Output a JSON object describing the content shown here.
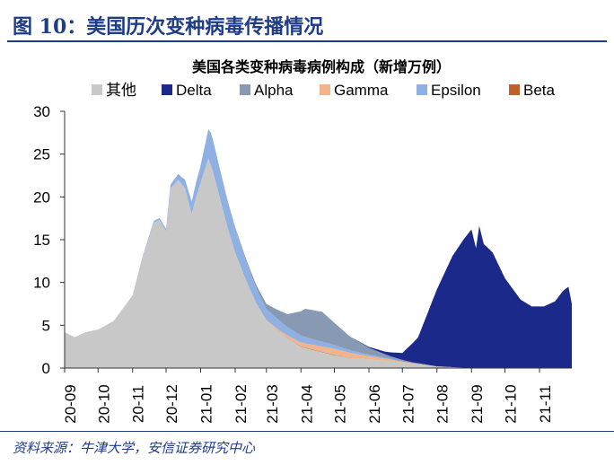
{
  "figure": {
    "label": "图 10：",
    "title": "美国历次变种病毒传播情况",
    "source": "资料来源：牛津大学，安信证券研究中心"
  },
  "colors": {
    "brand": "#1f3c88",
    "other": "#c8c8c8",
    "delta": "#1b2a8a",
    "alpha": "#8899b4",
    "gamma": "#f2b48c",
    "epsilon": "#8fb0e3",
    "beta": "#c0602a"
  },
  "chart_data": {
    "type": "area",
    "stacked": true,
    "title": "美国各类变种病毒病例构成（新增万例）",
    "xlabel": "",
    "ylabel": "",
    "ylim": [
      0,
      30
    ],
    "yticks": [
      "0",
      "5",
      "10",
      "15",
      "20",
      "25",
      "30"
    ],
    "xticks": [
      "20-09",
      "20-10",
      "20-11",
      "20-12",
      "21-01",
      "21-02",
      "21-03",
      "21-04",
      "21-05",
      "21-06",
      "21-07",
      "21-08",
      "21-09",
      "21-10",
      "21-11"
    ],
    "legend_position": "top",
    "grid": false,
    "x_start": "2020-09-01",
    "x_end": "2021-11-30",
    "series": [
      {
        "key": "other",
        "name": "其他",
        "points": [
          [
            "2020-09-01",
            4.2
          ],
          [
            "2020-09-10",
            3.6
          ],
          [
            "2020-09-20",
            4.2
          ],
          [
            "2020-10-01",
            4.5
          ],
          [
            "2020-10-15",
            5.5
          ],
          [
            "2020-11-01",
            8.5
          ],
          [
            "2020-11-10",
            13
          ],
          [
            "2020-11-20",
            17
          ],
          [
            "2020-11-25",
            17.3
          ],
          [
            "2020-12-01",
            16
          ],
          [
            "2020-12-05",
            21
          ],
          [
            "2020-12-12",
            22
          ],
          [
            "2020-12-18",
            21
          ],
          [
            "2020-12-24",
            18
          ],
          [
            "2020-12-28",
            20
          ],
          [
            "2021-01-03",
            22.5
          ],
          [
            "2021-01-08",
            24.5
          ],
          [
            "2021-01-12",
            23
          ],
          [
            "2021-01-18",
            20
          ],
          [
            "2021-01-25",
            16.5
          ],
          [
            "2021-02-01",
            13.5
          ],
          [
            "2021-02-10",
            10.5
          ],
          [
            "2021-02-20",
            7.5
          ],
          [
            "2021-03-01",
            5.5
          ],
          [
            "2021-03-10",
            4.5
          ],
          [
            "2021-03-20",
            3.5
          ],
          [
            "2021-04-01",
            2.5
          ],
          [
            "2021-04-15",
            2
          ],
          [
            "2021-05-01",
            1.5
          ],
          [
            "2021-05-15",
            1.2
          ],
          [
            "2021-06-01",
            1
          ],
          [
            "2021-06-20",
            0.8
          ],
          [
            "2021-07-10",
            0.5
          ],
          [
            "2021-08-01",
            0.2
          ],
          [
            "2021-09-01",
            0
          ],
          [
            "2021-11-30",
            0
          ]
        ]
      },
      {
        "key": "beta",
        "name": "Beta",
        "points": [
          [
            "2020-09-01",
            0
          ],
          [
            "2021-03-01",
            0
          ],
          [
            "2021-04-01",
            0.05
          ],
          [
            "2021-05-01",
            0.05
          ],
          [
            "2021-06-01",
            0
          ],
          [
            "2021-11-30",
            0
          ]
        ]
      },
      {
        "key": "gamma",
        "name": "Gamma",
        "points": [
          [
            "2020-09-01",
            0
          ],
          [
            "2021-02-15",
            0
          ],
          [
            "2021-03-15",
            0.2
          ],
          [
            "2021-04-15",
            0.6
          ],
          [
            "2021-05-01",
            0.7
          ],
          [
            "2021-05-20",
            0.5
          ],
          [
            "2021-06-10",
            0.3
          ],
          [
            "2021-07-01",
            0.1
          ],
          [
            "2021-08-01",
            0
          ],
          [
            "2021-11-30",
            0
          ]
        ]
      },
      {
        "key": "epsilon",
        "name": "Epsilon",
        "points": [
          [
            "2020-09-01",
            0
          ],
          [
            "2020-11-01",
            0
          ],
          [
            "2020-12-01",
            0.3
          ],
          [
            "2020-12-15",
            0.8
          ],
          [
            "2021-01-01",
            2
          ],
          [
            "2021-01-10",
            3.8
          ],
          [
            "2021-01-20",
            3.3
          ],
          [
            "2021-02-01",
            2.8
          ],
          [
            "2021-02-15",
            2
          ],
          [
            "2021-03-01",
            1.3
          ],
          [
            "2021-03-20",
            1
          ],
          [
            "2021-04-15",
            0.6
          ],
          [
            "2021-05-15",
            0.3
          ],
          [
            "2021-06-15",
            0.1
          ],
          [
            "2021-07-10",
            0
          ],
          [
            "2021-11-30",
            0
          ]
        ]
      },
      {
        "key": "alpha",
        "name": "Alpha",
        "points": [
          [
            "2020-09-01",
            0
          ],
          [
            "2021-01-15",
            0
          ],
          [
            "2021-02-15",
            0.3
          ],
          [
            "2021-03-01",
            0.6
          ],
          [
            "2021-03-20",
            1.5
          ],
          [
            "2021-04-05",
            3.3
          ],
          [
            "2021-04-20",
            3.5
          ],
          [
            "2021-05-01",
            2.6
          ],
          [
            "2021-05-15",
            1.6
          ],
          [
            "2021-06-01",
            0.8
          ],
          [
            "2021-06-20",
            0.3
          ],
          [
            "2021-07-10",
            0.1
          ],
          [
            "2021-08-01",
            0
          ],
          [
            "2021-11-30",
            0
          ]
        ]
      },
      {
        "key": "delta",
        "name": "Delta",
        "points": [
          [
            "2020-09-01",
            0
          ],
          [
            "2021-05-15",
            0
          ],
          [
            "2021-06-01",
            0.1
          ],
          [
            "2021-06-15",
            0.3
          ],
          [
            "2021-07-01",
            0.8
          ],
          [
            "2021-07-15",
            3
          ],
          [
            "2021-08-01",
            9
          ],
          [
            "2021-08-15",
            13
          ],
          [
            "2021-08-25",
            15
          ],
          [
            "2021-09-01",
            16.2
          ],
          [
            "2021-09-05",
            14
          ],
          [
            "2021-09-08",
            16.6
          ],
          [
            "2021-09-12",
            14.5
          ],
          [
            "2021-09-20",
            13.5
          ],
          [
            "2021-10-01",
            10.5
          ],
          [
            "2021-10-15",
            8
          ],
          [
            "2021-10-25",
            7.2
          ],
          [
            "2021-11-05",
            7.2
          ],
          [
            "2021-11-15",
            7.8
          ],
          [
            "2021-11-22",
            9
          ],
          [
            "2021-11-27",
            9.5
          ],
          [
            "2021-11-30",
            7.5
          ]
        ]
      }
    ],
    "legend": [
      "other",
      "delta",
      "alpha",
      "gamma",
      "epsilon",
      "beta"
    ]
  }
}
